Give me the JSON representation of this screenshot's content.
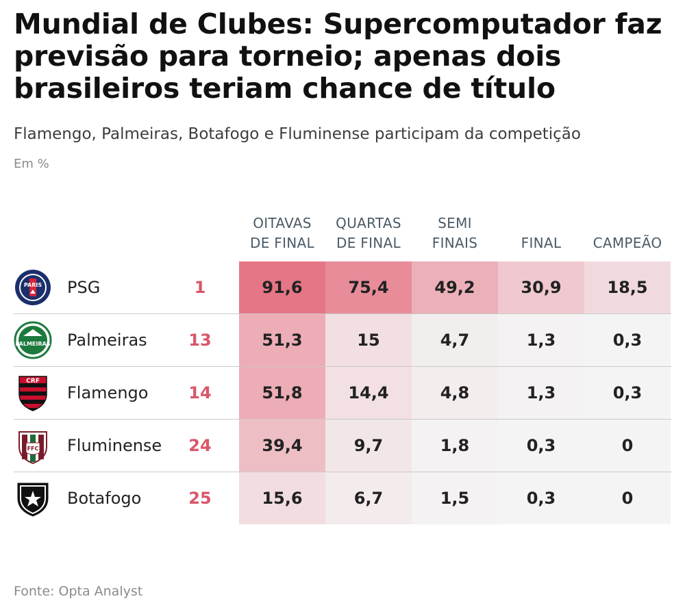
{
  "header": {
    "title": "Mundial de Clubes: Supercomputador faz previsão para torneio; apenas dois brasileiros teriam chance de título",
    "subtitle": "Flamengo, Palmeiras, Botafogo e Fluminense participam da competição",
    "unit": "Em %"
  },
  "footer": {
    "source": "Fonte: Opta Analyst"
  },
  "chart_data": {
    "type": "table",
    "columns": [
      "OITAVAS\nDE FINAL",
      "QUARTAS\nDE FINAL",
      "SEMI\nFINAIS",
      "FINAL",
      "CAMPEÃO"
    ],
    "rows": [
      {
        "team": "PSG",
        "rank": "1",
        "logo": "psg-crest",
        "values": [
          91.6,
          75.4,
          49.2,
          30.9,
          18.5
        ],
        "labels": [
          "91,6",
          "75,4",
          "49,2",
          "30,9",
          "18,5"
        ]
      },
      {
        "team": "Palmeiras",
        "rank": "13",
        "logo": "palmeiras-crest",
        "values": [
          51.3,
          15,
          4.7,
          1.3,
          0.3
        ],
        "labels": [
          "51,3",
          "15",
          "4,7",
          "1,3",
          "0,3"
        ]
      },
      {
        "team": "Flamengo",
        "rank": "14",
        "logo": "flamengo-crest",
        "values": [
          51.8,
          14.4,
          4.8,
          1.3,
          0.3
        ],
        "labels": [
          "51,8",
          "14,4",
          "4,8",
          "1,3",
          "0,3"
        ]
      },
      {
        "team": "Fluminense",
        "rank": "24",
        "logo": "fluminense-crest",
        "values": [
          39.4,
          9.7,
          1.8,
          0.3,
          0
        ],
        "labels": [
          "39,4",
          "9,7",
          "1,8",
          "0,3",
          "0"
        ]
      },
      {
        "team": "Botafogo",
        "rank": "25",
        "logo": "botafogo-crest",
        "values": [
          15.6,
          6.7,
          1.5,
          0.3,
          0
        ],
        "labels": [
          "15,6",
          "6,7",
          "1,5",
          "0,3",
          "0"
        ]
      }
    ],
    "colors": {
      "heat_high": "#e46a7c",
      "heat_low": "#f4f4f4",
      "rank": "#d9576b"
    }
  }
}
